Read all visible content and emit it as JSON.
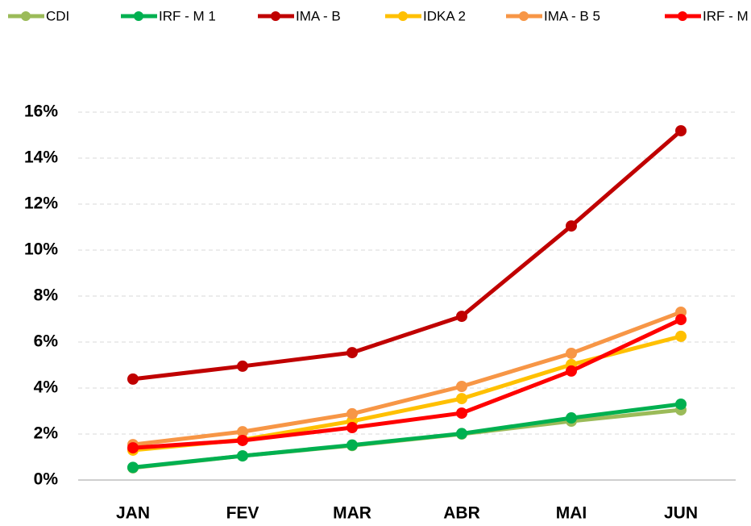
{
  "chart_data": {
    "type": "line",
    "categories": [
      "JAN",
      "FEV",
      "MAR",
      "ABR",
      "MAI",
      "JUN"
    ],
    "series": [
      {
        "name": "CDI",
        "color": "#9bbb59",
        "values": [
          0.53,
          1.05,
          1.5,
          2.0,
          2.56,
          3.05
        ]
      },
      {
        "name": "IRF - M 1",
        "color": "#00b050",
        "values": [
          0.55,
          1.05,
          1.52,
          2.02,
          2.7,
          3.3
        ]
      },
      {
        "name": "IMA - B",
        "color": "#c00000",
        "values": [
          4.39,
          4.95,
          5.54,
          7.12,
          11.05,
          15.19
        ]
      },
      {
        "name": "IDKA 2",
        "color": "#ffc000",
        "values": [
          1.3,
          1.75,
          2.56,
          3.54,
          5.02,
          6.25
        ]
      },
      {
        "name": "IMA - B 5",
        "color": "#f79646",
        "values": [
          1.54,
          2.1,
          2.88,
          4.07,
          5.51,
          7.3
        ]
      },
      {
        "name": "IRF - M",
        "color": "#ff0000",
        "values": [
          1.4,
          1.72,
          2.28,
          2.91,
          4.74,
          6.98
        ]
      }
    ],
    "ylim": [
      0,
      16
    ],
    "yticks": [
      {
        "value": 0,
        "label": "0%"
      },
      {
        "value": 2,
        "label": "2%"
      },
      {
        "value": 4,
        "label": "4%"
      },
      {
        "value": 6,
        "label": "6%"
      },
      {
        "value": 8,
        "label": "8%"
      },
      {
        "value": 10,
        "label": "10%"
      },
      {
        "value": 12,
        "label": "12%"
      },
      {
        "value": 14,
        "label": "14%"
      },
      {
        "value": 16,
        "label": "16%"
      }
    ],
    "grid": true,
    "legend": "top"
  }
}
